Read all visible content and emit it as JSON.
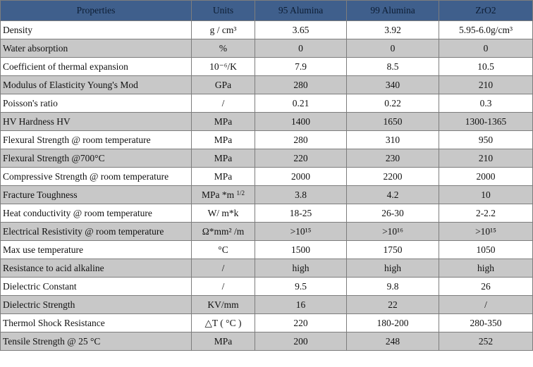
{
  "table": {
    "headers": [
      "Properties",
      "Units",
      "95 Alumina",
      "99  Alumina",
      "ZrO2"
    ],
    "rows": [
      {
        "property": "Density",
        "unit": "g / cm³",
        "a95": "3.65",
        "a99": "3.92",
        "zro2": "5.95-6.0g/cm³"
      },
      {
        "property": "Water absorption",
        "unit": "%",
        "a95": "0",
        "a99": "0",
        "zro2": "0"
      },
      {
        "property": "Coefficient of thermal expansion",
        "unit": "10⁻⁶/K",
        "a95": "7.9",
        "a99": "8.5",
        "zro2": "10.5"
      },
      {
        "property": "Modulus of Elasticity Young's Mod",
        "unit": "GPa",
        "a95": "280",
        "a99": "340",
        "zro2": "210"
      },
      {
        "property": "Poisson's ratio",
        "unit": "/",
        "a95": "0.21",
        "a99": "0.22",
        "zro2": "0.3"
      },
      {
        "property": "HV Hardness  HV",
        "unit": "MPa",
        "a95": "1400",
        "a99": "1650",
        "zro2": "1300-1365"
      },
      {
        "property": "Flexural Strength @ room temperature",
        "unit": "MPa",
        "a95": "280",
        "a99": "310",
        "zro2": "950"
      },
      {
        "property": "Flexural Strength @700°C",
        "unit": "MPa",
        "a95": "220",
        "a99": "230",
        "zro2": "210"
      },
      {
        "property": "Compressive Strength @ room temperature",
        "unit": "MPa",
        "a95": "2000",
        "a99": "2200",
        "zro2": "2000"
      },
      {
        "property": "Fracture Toughness",
        "unit": "MPa *m 1/2",
        "a95": "3.8",
        "a99": "4.2",
        "zro2": "10"
      },
      {
        "property": "Heat conductivity @ room temperature",
        "unit": "W/ m*k",
        "a95": "18-25",
        "a99": "26-30",
        "zro2": "2-2.2"
      },
      {
        "property": "Electrical Resistivity @ room temperature",
        "unit": "Ω*mm² /m",
        "a95": ">10¹⁵",
        "a99": ">10¹⁶",
        "zro2": ">10¹⁵"
      },
      {
        "property": "Max use temperature",
        "unit": "°C",
        "a95": "1500",
        "a99": "1750",
        "zro2": "1050"
      },
      {
        "property": "Resistance to acid alkaline",
        "unit": "/",
        "a95": "high",
        "a99": "high",
        "zro2": "high"
      },
      {
        "property": "Dielectric Constant",
        "unit": "/",
        "a95": "9.5",
        "a99": "9.8",
        "zro2": "26"
      },
      {
        "property": "Dielectric  Strength",
        "unit": "KV/mm",
        "a95": "16",
        "a99": "22",
        "zro2": "/"
      },
      {
        "property": "Thermol Shock Resistance",
        "unit": "△T ( °C )",
        "a95": "220",
        "a99": "180-200",
        "zro2": "280-350"
      },
      {
        "property": "Tensile Strength @ 25 °C",
        "unit": "MPa",
        "a95": "200",
        "a99": "248",
        "zro2": "252"
      }
    ]
  }
}
